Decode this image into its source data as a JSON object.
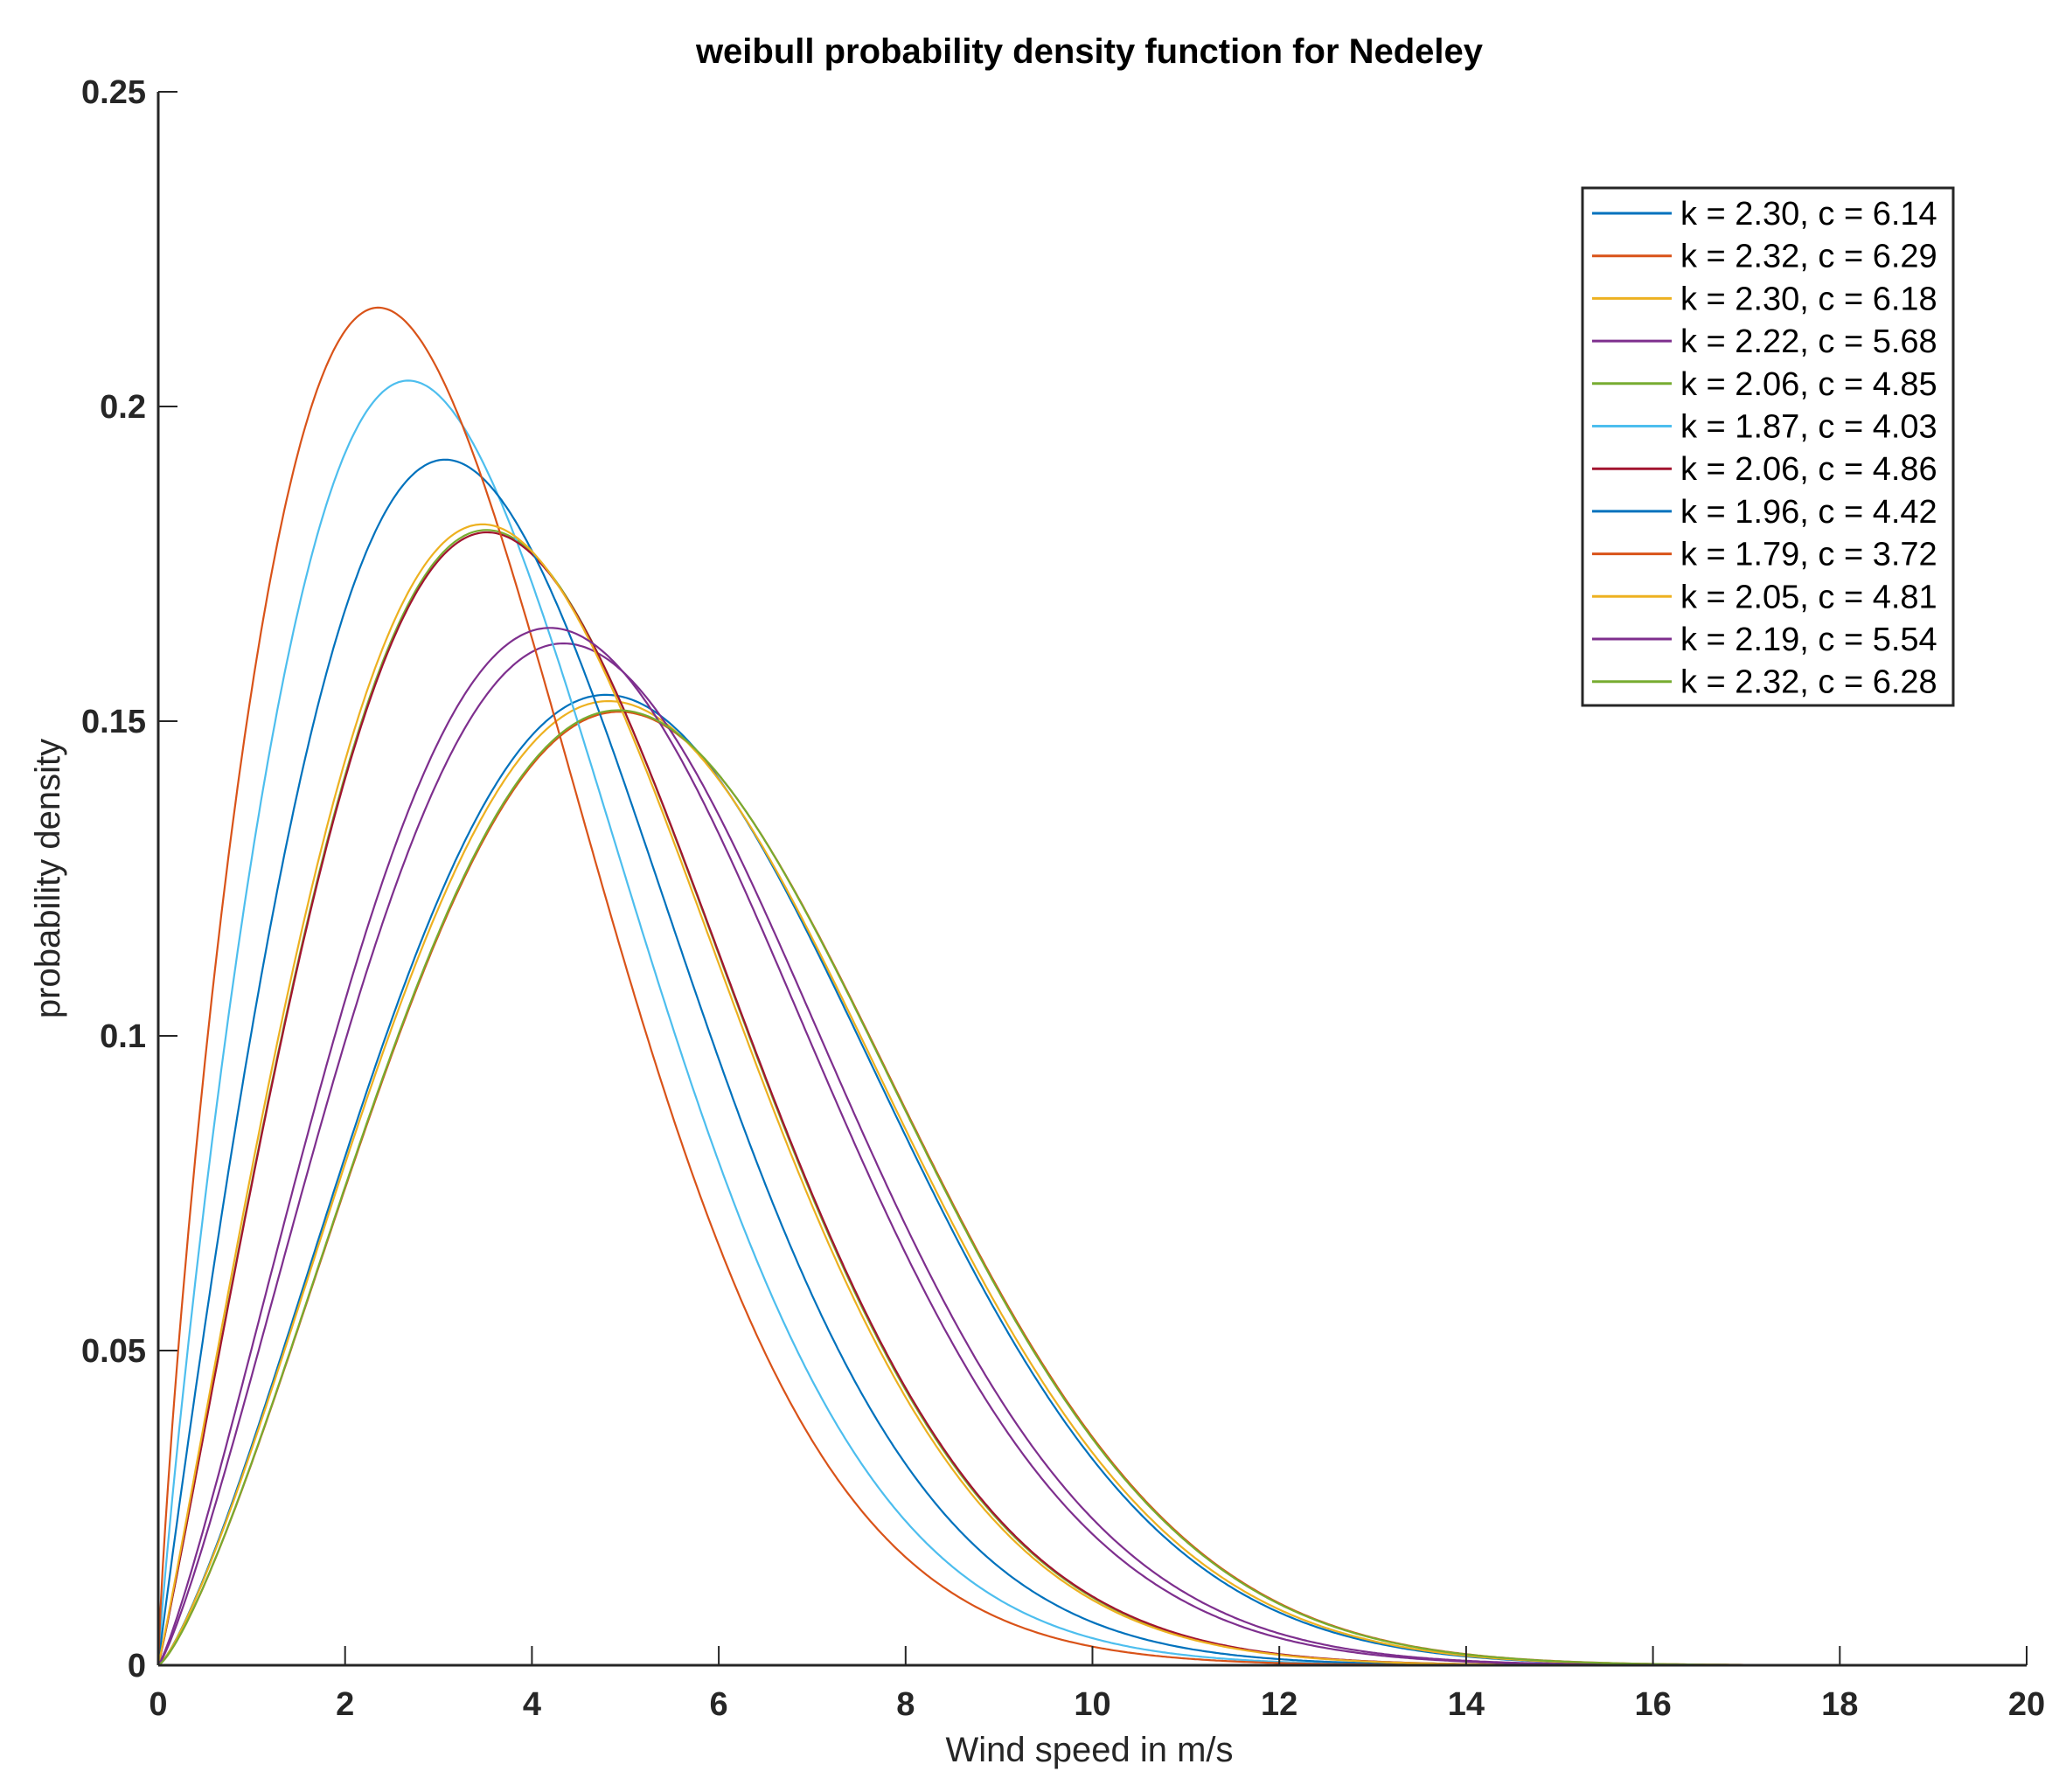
{
  "chart_data": {
    "type": "line",
    "title": "weibull probability density function for Nedeley",
    "xlabel": "Wind speed in m/s",
    "ylabel": "probability density",
    "xlim": [
      0,
      20
    ],
    "ylim": [
      0,
      0.25
    ],
    "xticks": [
      "0",
      "2",
      "4",
      "6",
      "8",
      "10",
      "12",
      "14",
      "16",
      "18",
      "20"
    ],
    "yticks": [
      "0",
      "0.05",
      "0.1",
      "0.15",
      "0.2",
      "0.25"
    ],
    "grid": false,
    "legend_position": "top-right",
    "function": "f(v) = (k/c)(v/c)^(k-1) exp(-(v/c)^k)",
    "series": [
      {
        "name": "k = 2.30, c = 6.14",
        "k": 2.3,
        "c": 6.14,
        "color": "#0072BD"
      },
      {
        "name": "k = 2.32, c = 6.29",
        "k": 2.32,
        "c": 6.29,
        "color": "#D95319"
      },
      {
        "name": "k = 2.30, c = 6.18",
        "k": 2.3,
        "c": 6.18,
        "color": "#EDB120"
      },
      {
        "name": "k = 2.22, c = 5.68",
        "k": 2.22,
        "c": 5.68,
        "color": "#7E2F8E"
      },
      {
        "name": "k = 2.06, c = 4.85",
        "k": 2.06,
        "c": 4.85,
        "color": "#77AC30"
      },
      {
        "name": "k = 1.87, c = 4.03",
        "k": 1.87,
        "c": 4.03,
        "color": "#4DBEEE"
      },
      {
        "name": "k = 2.06, c = 4.86",
        "k": 2.06,
        "c": 4.86,
        "color": "#A2142F"
      },
      {
        "name": "k = 1.96, c = 4.42",
        "k": 1.96,
        "c": 4.42,
        "color": "#0072BD"
      },
      {
        "name": "k = 1.79, c = 3.72",
        "k": 1.79,
        "c": 3.72,
        "color": "#D95319"
      },
      {
        "name": "k = 2.05, c = 4.81",
        "k": 2.05,
        "c": 4.81,
        "color": "#EDB120"
      },
      {
        "name": "k = 2.19, c = 5.54",
        "k": 2.19,
        "c": 5.54,
        "color": "#7E2F8E"
      },
      {
        "name": "k = 2.32, c = 6.28",
        "k": 2.32,
        "c": 6.28,
        "color": "#77AC30"
      }
    ]
  }
}
